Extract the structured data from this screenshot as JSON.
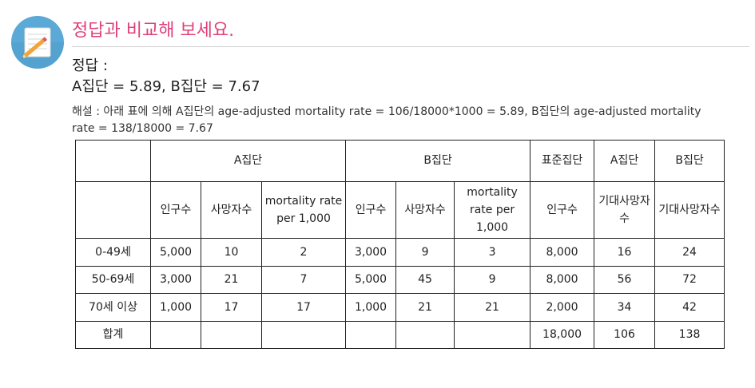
{
  "header": {
    "title": "정답과 비교해 보세요.",
    "icon": "notepad-pencil-icon",
    "icon_color": "#5aa9d6",
    "title_color": "#e0407a"
  },
  "answer": {
    "label": "정답 :",
    "value": "A집단 = 5.89, B집단 = 7.67"
  },
  "explanation": "해설 : 아래 표에 의해 A집단의 age-adjusted mortality rate = 106/18000*1000 = 5.89, B집단의 age-adjusted mortality rate = 138/18000 = 7.67",
  "table": {
    "group_headers": {
      "a_group": "A집단",
      "b_group": "B집단",
      "standard_group": "표준집단",
      "a_expected": "A집단",
      "b_expected": "B집단"
    },
    "sub_headers": {
      "a_population": "인구수",
      "a_deaths": "사망자수",
      "a_rate": "mortality rate per 1,000",
      "b_population": "인구수",
      "b_deaths": "사망자수",
      "b_rate": "mortality rate per 1,000",
      "std_population": "인구수",
      "a_expected_deaths": "기대사망자수",
      "b_expected_deaths": "기대사망자수"
    },
    "rows": [
      {
        "age": "0-49세",
        "a_pop": "5,000",
        "a_deaths": "10",
        "a_rate": "2",
        "b_pop": "3,000",
        "b_deaths": "9",
        "b_rate": "3",
        "std_pop": "8,000",
        "a_exp": "16",
        "b_exp": "24"
      },
      {
        "age": "50-69세",
        "a_pop": "3,000",
        "a_deaths": "21",
        "a_rate": "7",
        "b_pop": "5,000",
        "b_deaths": "45",
        "b_rate": "9",
        "std_pop": "8,000",
        "a_exp": "56",
        "b_exp": "72"
      },
      {
        "age": "70세 이상",
        "a_pop": "1,000",
        "a_deaths": "17",
        "a_rate": "17",
        "b_pop": "1,000",
        "b_deaths": "21",
        "b_rate": "21",
        "std_pop": "2,000",
        "a_exp": "34",
        "b_exp": "42"
      },
      {
        "age": "합계",
        "a_pop": "",
        "a_deaths": "",
        "a_rate": "",
        "b_pop": "",
        "b_deaths": "",
        "b_rate": "",
        "std_pop": "18,000",
        "a_exp": "106",
        "b_exp": "138"
      }
    ]
  }
}
